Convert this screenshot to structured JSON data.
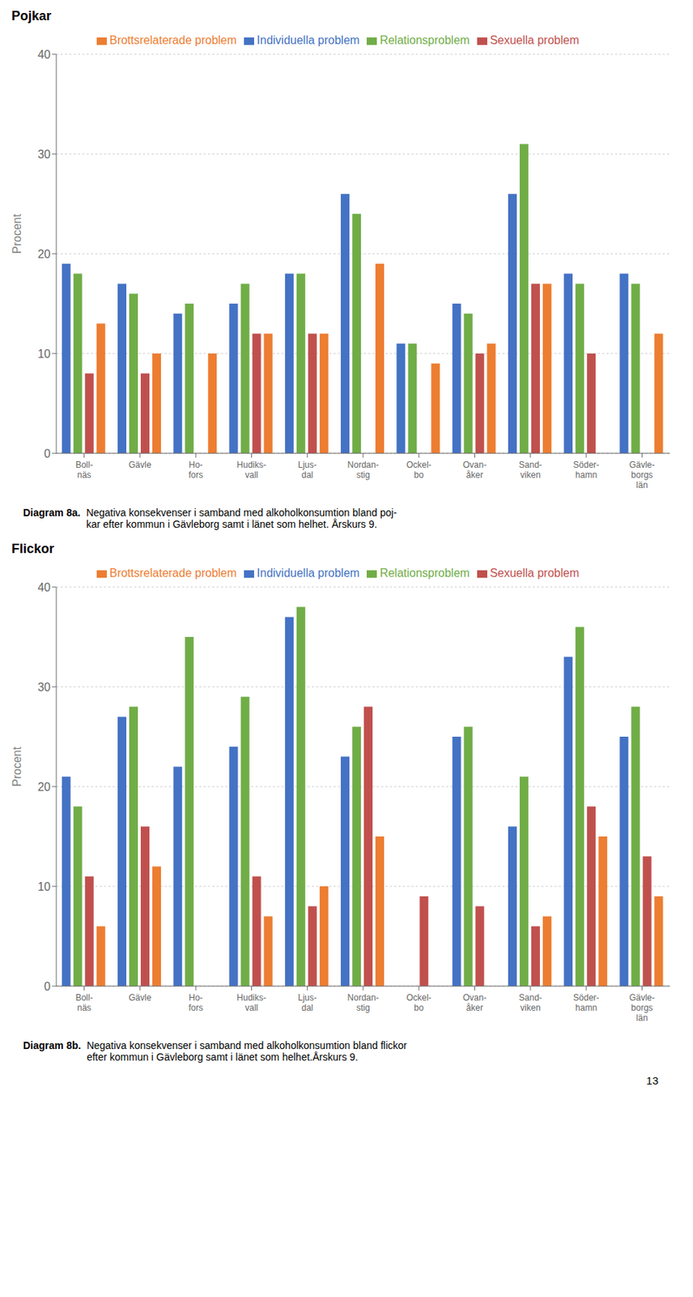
{
  "chart_data": [
    {
      "type": "bar",
      "title": "Pojkar",
      "ylabel": "Procent",
      "categories": [
        "Boll-\nnäs",
        "Gävle",
        "Ho-\nfors",
        "Hudiks-\nvall",
        "Ljus-\ndal",
        "Nordan-\nstig",
        "Ockel-\nbo",
        "Ovan-\nåker",
        "Sand-\nviken",
        "Söder-\nhamn",
        "Gävle-\nborgs\nlän"
      ],
      "series": [
        {
          "name": "Individuella problem",
          "color": "#4472C4",
          "values": [
            19,
            17,
            14,
            15,
            18,
            26,
            11,
            15,
            26,
            18,
            18
          ]
        },
        {
          "name": "Relationsproblem",
          "color": "#70AD47",
          "values": [
            18,
            16,
            15,
            17,
            18,
            24,
            11,
            14,
            31,
            17,
            17
          ]
        },
        {
          "name": "Sexuella problem",
          "color": "#C0504D",
          "values": [
            8,
            8,
            0,
            12,
            12,
            0,
            0,
            10,
            17,
            10,
            0
          ]
        },
        {
          "name": "Brottsrelaterade problem",
          "color": "#ED7D31",
          "values": [
            13,
            10,
            10,
            12,
            12,
            19,
            9,
            11,
            17,
            0,
            12
          ]
        }
      ],
      "ylim": [
        0,
        40
      ],
      "yticks": [
        0,
        10,
        20,
        30,
        40
      ],
      "grid": true,
      "legend": "top",
      "annotations": [
        "Diagram 8a.",
        "Negativa konsekvenser i samband med alkoholkonsumtion bland poj-\nkar efter kommun i Gävleborg samt i länet som helhet. Årskurs 9."
      ]
    },
    {
      "type": "bar",
      "title": "Flickor",
      "ylabel": "Procent",
      "categories": [
        "Boll-\nnäs",
        "Gävle",
        "Ho-\nfors",
        "Hudiks-\nvall",
        "Ljus-\ndal",
        "Nordan-\nstig",
        "Ockel-\nbo",
        "Ovan-\nåker",
        "Sand-\nviken",
        "Söder-\nhamn",
        "Gävle-\nborgs\nlän"
      ],
      "series": [
        {
          "name": "Individuella problem",
          "color": "#4472C4",
          "values": [
            21,
            27,
            22,
            24,
            37,
            23,
            0,
            25,
            16,
            33,
            25
          ]
        },
        {
          "name": "Relationsproblem",
          "color": "#70AD47",
          "values": [
            18,
            28,
            35,
            29,
            38,
            26,
            0,
            26,
            21,
            36,
            28
          ]
        },
        {
          "name": "Sexuella problem",
          "color": "#C0504D",
          "values": [
            11,
            16,
            0,
            11,
            8,
            28,
            9,
            8,
            6,
            18,
            13
          ]
        },
        {
          "name": "Brottsrelaterade problem",
          "color": "#ED7D31",
          "values": [
            6,
            12,
            0,
            7,
            10,
            15,
            0,
            0,
            7,
            15,
            9
          ]
        }
      ],
      "ylim": [
        0,
        40
      ],
      "yticks": [
        0,
        10,
        20,
        30,
        40
      ],
      "grid": true,
      "legend": "top",
      "annotations": [
        "Diagram 8b.",
        "Negativa konsekvenser i samband med alkoholkonsumtion bland flickor\nefter kommun i Gävleborg samt i länet som helhet.Årskurs 9."
      ]
    }
  ],
  "page_number": "13"
}
